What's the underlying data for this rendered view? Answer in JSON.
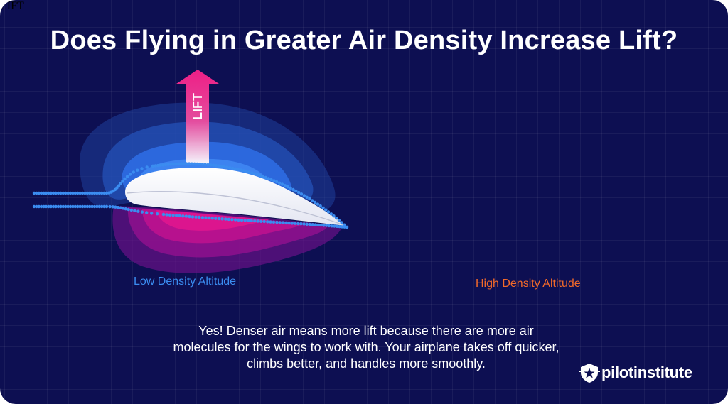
{
  "title": "Does Flying in Greater Air Density Increase Lift?",
  "panels": [
    {
      "label": "Low Density Altitude",
      "arrow_label": "LIFT",
      "label_color": "#3b8cf0"
    },
    {
      "label": "High Density Altitude",
      "arrow_label": "LIFT",
      "label_color": "#f26a2a"
    }
  ],
  "caption": [
    "Yes! Denser air means more lift because there are more air",
    "molecules for the wings to work with. Your airplane takes off quicker,",
    "climbs better, and handles more smoothly."
  ],
  "logo": {
    "text": "pilotinstitute",
    "icon": "star-shield-icon"
  },
  "colors": {
    "background": "#0d0f52",
    "lift_arrow": "#ee1e86",
    "low_pressure": "#2f6fe6",
    "high_pressure": "#c0128e",
    "low_density_dots": "#3b8cf0",
    "high_density_dots": "#f26a2a"
  }
}
